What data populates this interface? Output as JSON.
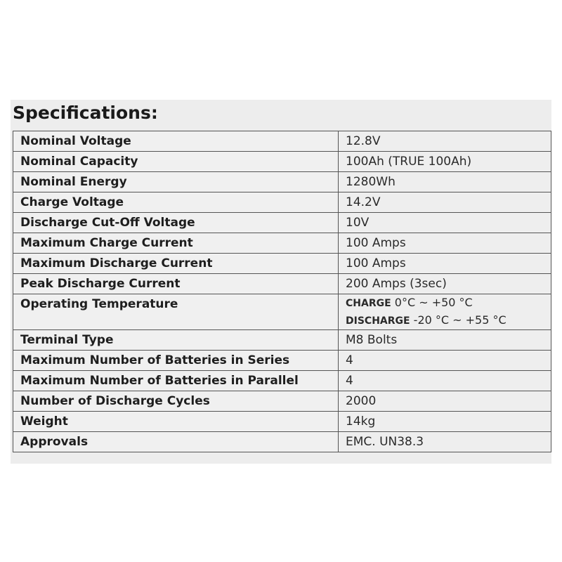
{
  "header": {
    "title": "Specifications:"
  },
  "table": {
    "rows": [
      {
        "label": "Nominal Voltage",
        "value": "12.8V"
      },
      {
        "label": "Nominal Capacity",
        "value": "100Ah (TRUE 100Ah)"
      },
      {
        "label": "Nominal Energy",
        "value": "1280Wh"
      },
      {
        "label": "Charge Voltage",
        "value": "14.2V"
      },
      {
        "label": "Discharge Cut-Off Voltage",
        "value": "10V"
      },
      {
        "label": "Maximum Charge Current",
        "value": "100 Amps"
      },
      {
        "label": "Maximum Discharge Current",
        "value": "100 Amps"
      },
      {
        "label": "Peak Discharge Current",
        "value": "200 Amps (3sec)"
      },
      {
        "label": "Operating Temperature",
        "value": [
          {
            "label": "CHARGE",
            "text": "0°C ~ +50 °C"
          },
          {
            "label": "DISCHARGE",
            "text": "-20 °C ~ +55 °C"
          }
        ]
      },
      {
        "label": "Terminal Type",
        "value": "M8 Bolts"
      },
      {
        "label": "Maximum Number of Batteries in Series",
        "value": "4"
      },
      {
        "label": "Maximum Number of Batteries in Parallel",
        "value": "4"
      },
      {
        "label": "Number of Discharge Cycles",
        "value": "2000"
      },
      {
        "label": "Weight",
        "value": "14kg"
      },
      {
        "label": "Approvals",
        "value": "EMC. UN38.3"
      }
    ]
  }
}
